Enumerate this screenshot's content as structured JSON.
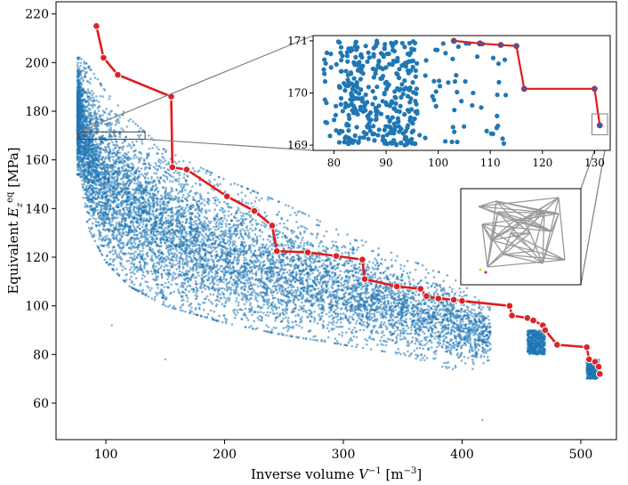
{
  "chart_data": [
    {
      "type": "scatter",
      "role": "main",
      "xlabel": "Inverse volume V⁻¹ [m⁻³]",
      "ylabel": "Equivalent E_z^eq [MPa]",
      "xlim": [
        58,
        530
      ],
      "ylim": [
        45,
        225
      ],
      "xticks": [
        100,
        200,
        300,
        400,
        500
      ],
      "yticks": [
        60,
        80,
        100,
        120,
        140,
        160,
        180,
        200,
        220
      ],
      "grid": false,
      "series": [
        {
          "kind": "scatter-cloud",
          "color": "#1f77b4",
          "cloud_envelope": [
            [
              78,
              200,
              160
            ],
            [
              85,
              197,
              138
            ],
            [
              100,
              186,
              124
            ],
            [
              120,
              175,
              114
            ],
            [
              150,
              162,
              106
            ],
            [
              200,
              150,
              99
            ],
            [
              250,
              140,
              94
            ],
            [
              300,
              128,
              90
            ],
            [
              350,
              118,
              86
            ],
            [
              390,
              110,
              80
            ],
            [
              420,
              100,
              80
            ]
          ],
          "clusters": [
            [
              455,
              470,
              80,
              90
            ],
            [
              505,
              515,
              70,
              78
            ]
          ],
          "outliers": [
            [
              150,
              78
            ],
            [
              417,
              53
            ],
            [
              105,
              92
            ]
          ]
        },
        {
          "kind": "pareto-front",
          "color": "#e41a1c",
          "marker_color": "#d62728",
          "points": [
            [
              92,
              215
            ],
            [
              98,
              202
            ],
            [
              110,
              195
            ],
            [
              155,
              186
            ],
            [
              156,
              157
            ],
            [
              168,
              156
            ],
            [
              202,
              145
            ],
            [
              225,
              139
            ],
            [
              240,
              133
            ],
            [
              244,
              122.5
            ],
            [
              270,
              122
            ],
            [
              294,
              120.5
            ],
            [
              316,
              119
            ],
            [
              318,
              111
            ],
            [
              345,
              108
            ],
            [
              365,
              107
            ],
            [
              370,
              104
            ],
            [
              380,
              103
            ],
            [
              393,
              102.5
            ],
            [
              400,
              102
            ],
            [
              440,
              100
            ],
            [
              442,
              96
            ],
            [
              455,
              95
            ],
            [
              460,
              94
            ],
            [
              468,
              92
            ],
            [
              470,
              90
            ],
            [
              480,
              84
            ],
            [
              505,
              83
            ],
            [
              507,
              78
            ],
            [
              512,
              77
            ],
            [
              515,
              75
            ],
            [
              516,
              72
            ]
          ]
        }
      ]
    },
    {
      "type": "scatter",
      "role": "zoom-inset",
      "xlim": [
        76,
        133
      ],
      "ylim": [
        168.9,
        171.1
      ],
      "xticks": [
        80,
        90,
        100,
        110,
        120,
        130
      ],
      "yticks": [
        169,
        170,
        171
      ],
      "grid": false,
      "series": [
        {
          "kind": "scatter",
          "color": "#1f77b4",
          "count": 420,
          "x_range": [
            78,
            113
          ],
          "y_range": [
            169,
            171
          ],
          "dense_x_range": [
            81,
            96
          ]
        },
        {
          "kind": "pareto-front",
          "color": "#e41a1c",
          "marker_color": "#3b5ba5",
          "points": [
            [
              103,
              171
            ],
            [
              108,
              170.95
            ],
            [
              112,
              170.92
            ],
            [
              115,
              170.9
            ],
            [
              116.5,
              170.08
            ],
            [
              130,
              170.08
            ],
            [
              131,
              169.38
            ]
          ]
        }
      ]
    }
  ],
  "zoom_box": {
    "xlim": [
      77,
      133
    ],
    "ylim": [
      168.5,
      171.5
    ]
  },
  "small_zoom_box": {
    "xlim": [
      129.5,
      132.5
    ],
    "ylim": [
      169.2,
      169.6
    ]
  },
  "structure_inset": {
    "content": "lattice-structure",
    "color": "#999999"
  },
  "colors": {
    "scatter": "#1f77b4",
    "front_line": "#e41a1c",
    "front_marker": "#d62728",
    "connector": "#808080"
  }
}
